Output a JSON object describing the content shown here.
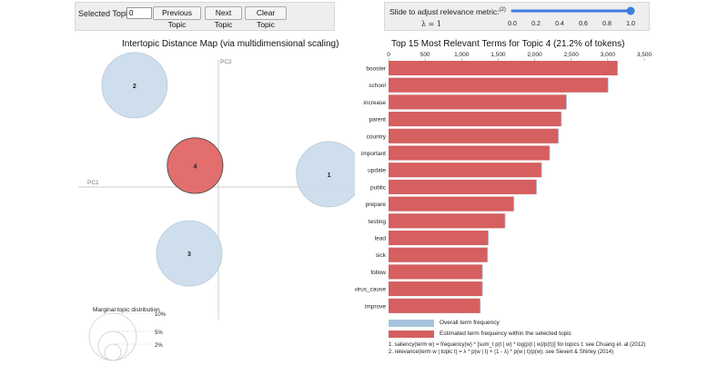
{
  "controls": {
    "selected_topic_label": "Selected Topic:",
    "selected_topic_value": "0",
    "prev_label": "Previous Topic",
    "next_label": "Next Topic",
    "clear_label": "Clear Topic"
  },
  "slider": {
    "label": "Slide to adjust relevance metric:",
    "footnote_ref": "(2)",
    "lambda_text": "λ = 1",
    "value": 1.0,
    "min": 0.0,
    "max": 1.0,
    "ticks": [
      "0.0",
      "0.2",
      "0.4",
      "0.6",
      "0.8",
      "1.0"
    ],
    "track_color": "#3d7fe0"
  },
  "intertopic_map": {
    "title": "Intertopic Distance Map (via multidimensional scaling)",
    "pc1_label": "PC1",
    "pc2_label": "PC2",
    "topics": [
      {
        "label": "1",
        "pc1": 0.95,
        "pc2": 0.12,
        "size": 1.0,
        "selected": false
      },
      {
        "label": "2",
        "pc1": -0.72,
        "pc2": 0.95,
        "size": 1.0,
        "selected": false
      },
      {
        "label": "3",
        "pc1": -0.25,
        "pc2": -0.62,
        "size": 1.0,
        "selected": false
      },
      {
        "label": "4",
        "pc1": -0.2,
        "pc2": 0.2,
        "size": 0.85,
        "selected": true
      }
    ],
    "marginal_label": "Marginal topic distribution",
    "marginal_levels": [
      "2%",
      "5%",
      "10%"
    ],
    "colors": {
      "default": "#c9daea",
      "selected": "#e06666"
    }
  },
  "bar_chart": {
    "title": "Top 15 Most Relevant Terms for Topic 4 (21.2% of tokens)",
    "legend_overall": "Overall term frequency",
    "legend_estimated": "Estimated term frequency within the selected topic",
    "footnote1": "1. saliency(term w) = frequency(w) * [sum_t p(t | w) * log(p(t | w)/p(t))] for topics t; see Chuang et. al (2012)",
    "footnote2": "2. relevance(term w | topic t) = λ * p(w | t) + (1 - λ) * p(w | t)/p(w); see Sievert & Shirley (2014)",
    "colors": {
      "overall": "#a6c2dc",
      "estimated": "#d65f5f"
    }
  },
  "chart_data": {
    "type": "bar",
    "title": "Top 15 Most Relevant Terms for Topic 4 (21.2% of tokens)",
    "orientation": "horizontal",
    "xlim": [
      0,
      3500
    ],
    "ticks": [
      "0",
      "500",
      "1,000",
      "1,500",
      "2,000",
      "2,500",
      "3,000",
      "3,500"
    ],
    "tick_values": [
      0,
      500,
      1000,
      1500,
      2000,
      2500,
      3000,
      3500
    ],
    "categories": [
      "booster",
      "school",
      "increase",
      "parent",
      "country",
      "important",
      "update",
      "public",
      "prepare",
      "testing",
      "lead",
      "sick",
      "follow",
      "virus_cause",
      "improve"
    ],
    "series": [
      {
        "name": "Overall term frequency",
        "values": [
          3140,
          3010,
          2440,
          2370,
          2330,
          2210,
          2100,
          2030,
          1720,
          1600,
          1370,
          1360,
          1290,
          1290,
          1260
        ]
      },
      {
        "name": "Estimated term frequency within the selected topic",
        "values": [
          3130,
          3000,
          2430,
          2360,
          2320,
          2200,
          2090,
          2020,
          1710,
          1590,
          1360,
          1350,
          1280,
          1280,
          1250
        ]
      }
    ]
  }
}
